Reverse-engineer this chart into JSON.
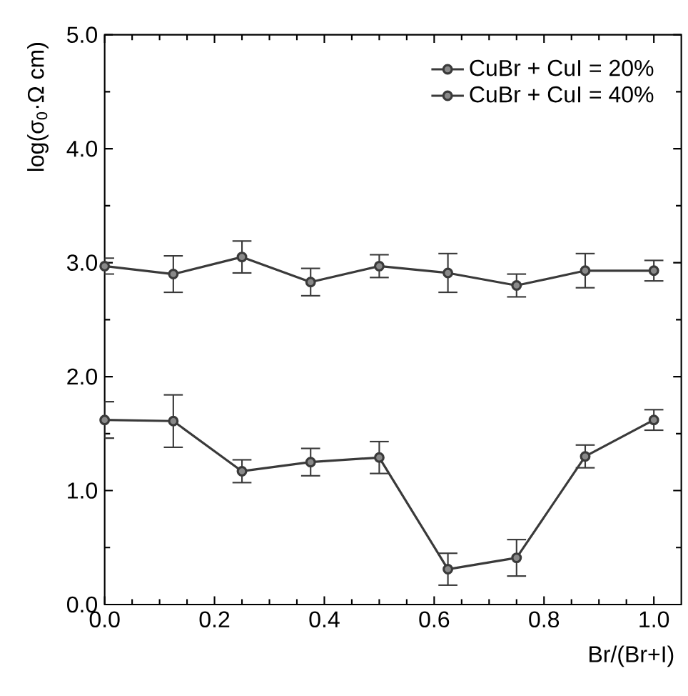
{
  "chart_data": {
    "type": "line",
    "xlabel": "Br/(Br+I)",
    "ylabel": "log(σ$_{0}$·Ω cm)",
    "x": [
      0,
      0.125,
      0.25,
      0.375,
      0.5,
      0.625,
      0.75,
      0.875,
      1.0
    ],
    "series": [
      {
        "name": "CuBr + CuI = 20%",
        "color": "#3a3a3a",
        "values": [
          2.97,
          2.9,
          3.05,
          2.83,
          2.97,
          2.91,
          2.8,
          2.93,
          2.93
        ],
        "errors": [
          0.07,
          0.16,
          0.14,
          0.12,
          0.1,
          0.17,
          0.1,
          0.15,
          0.09
        ]
      },
      {
        "name": "CuBr + CuI = 40%",
        "color": "#3a3a3a",
        "values": [
          1.62,
          1.61,
          1.17,
          1.25,
          1.29,
          0.31,
          0.41,
          1.3,
          1.62
        ],
        "errors": [
          0.16,
          0.23,
          0.1,
          0.12,
          0.14,
          0.14,
          0.16,
          0.1,
          0.09
        ]
      }
    ],
    "xlim": [
      0,
      1.05
    ],
    "ylim": [
      0,
      5
    ],
    "xticks": [
      {
        "value": 0,
        "label": "0.0"
      },
      0.2,
      0.4,
      0.6,
      0.8,
      {
        "value": 1.0,
        "label": "1.0"
      }
    ],
    "yticks": [
      {
        "value": 0,
        "label": "0.0"
      },
      {
        "value": 1,
        "label": "1.0"
      },
      {
        "value": 2,
        "label": "2.0"
      },
      {
        "value": 3,
        "label": "3.0"
      },
      {
        "value": 4,
        "label": "4.0"
      },
      {
        "value": 5,
        "label": "5.0"
      }
    ],
    "legend": "top right",
    "marker": "circle",
    "line_style": "solid",
    "grid": false
  }
}
